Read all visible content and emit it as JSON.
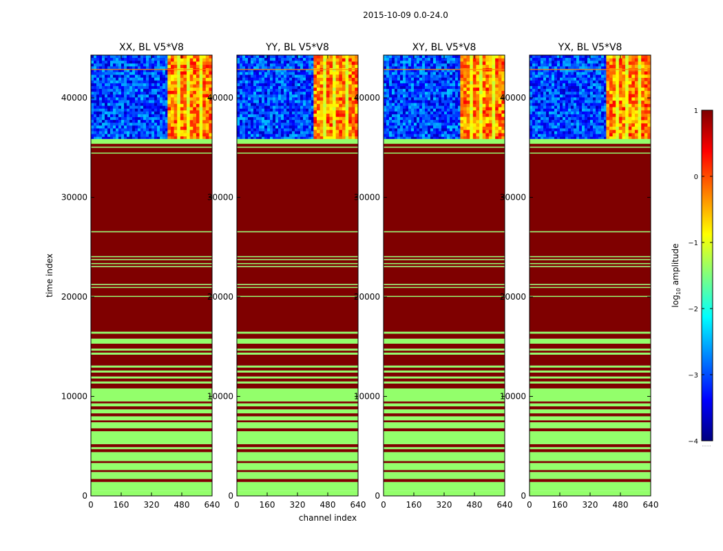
{
  "figure_title": "2015-10-09 0.0-24.0",
  "xlabel": "channel index",
  "ylabel": "time index",
  "colorbar": {
    "label": "log10 amplitude",
    "label_base": "log",
    "label_sub": "10",
    "label_rest": " amplitude",
    "range": [
      -4,
      1
    ],
    "ticks": [
      1,
      0,
      -1,
      -2,
      -3,
      -4
    ],
    "tick_labels": [
      "1",
      "0",
      "−1",
      "−2",
      "−3",
      "−4"
    ],
    "colors": [
      "#00007f",
      "#0000ff",
      "#007fff",
      "#00ffff",
      "#7fff7f",
      "#ffff00",
      "#ff7f00",
      "#ff0000",
      "#7f0000"
    ],
    "footnote": "......"
  },
  "chart_data": [
    {
      "type": "heatmap",
      "title": "XX, BL V5*V8",
      "x_range": [
        0,
        640
      ],
      "y_range": [
        0,
        44300
      ],
      "x_ticks": [
        0,
        160,
        320,
        480,
        640
      ],
      "y_ticks": [
        0,
        10000,
        20000,
        30000,
        40000
      ],
      "x_tick_labels": [
        "0",
        "160",
        "320",
        "480",
        "640"
      ],
      "y_tick_labels": [
        "0",
        "10000",
        "20000",
        "30000",
        "40000"
      ],
      "hot_band": [
        405,
        640
      ],
      "blank_time": 35800,
      "value_hot": 1.0,
      "value_flat": -1.4
    },
    {
      "type": "heatmap",
      "title": "YY, BL V5*V8",
      "x_range": [
        0,
        640
      ],
      "y_range": [
        0,
        44300
      ],
      "x_ticks": [
        0,
        160,
        320,
        480,
        640
      ],
      "y_ticks": [
        0,
        10000,
        20000,
        30000,
        40000
      ],
      "x_tick_labels": [
        "0",
        "160",
        "320",
        "480",
        "640"
      ],
      "y_tick_labels": [
        "0",
        "10000",
        "20000",
        "30000",
        "40000"
      ],
      "hot_band": [
        405,
        640
      ],
      "blank_time": 35800,
      "value_hot": 1.0,
      "value_flat": -1.4
    },
    {
      "type": "heatmap",
      "title": "XY, BL V5*V8",
      "x_range": [
        0,
        640
      ],
      "y_range": [
        0,
        44300
      ],
      "x_ticks": [
        0,
        160,
        320,
        480,
        640
      ],
      "y_ticks": [
        0,
        10000,
        20000,
        30000,
        40000
      ],
      "x_tick_labels": [
        "0",
        "160",
        "320",
        "480",
        "640"
      ],
      "y_tick_labels": [
        "0",
        "10000",
        "20000",
        "30000",
        "40000"
      ],
      "hot_band": [
        405,
        640
      ],
      "blank_time": 35800,
      "value_hot": 1.0,
      "value_flat": -1.4
    },
    {
      "type": "heatmap",
      "title": "YX, BL V5*V8",
      "x_range": [
        0,
        640
      ],
      "y_range": [
        0,
        44300
      ],
      "x_ticks": [
        0,
        160,
        320,
        480,
        640
      ],
      "y_ticks": [
        0,
        10000,
        20000,
        30000,
        40000
      ],
      "x_tick_labels": [
        "0",
        "160",
        "320",
        "480",
        "640"
      ],
      "y_tick_labels": [
        "0",
        "10000",
        "20000",
        "30000",
        "40000"
      ],
      "hot_band": [
        405,
        640
      ],
      "blank_time": 35800,
      "value_hot": 1.0,
      "value_flat": -1.4
    }
  ]
}
